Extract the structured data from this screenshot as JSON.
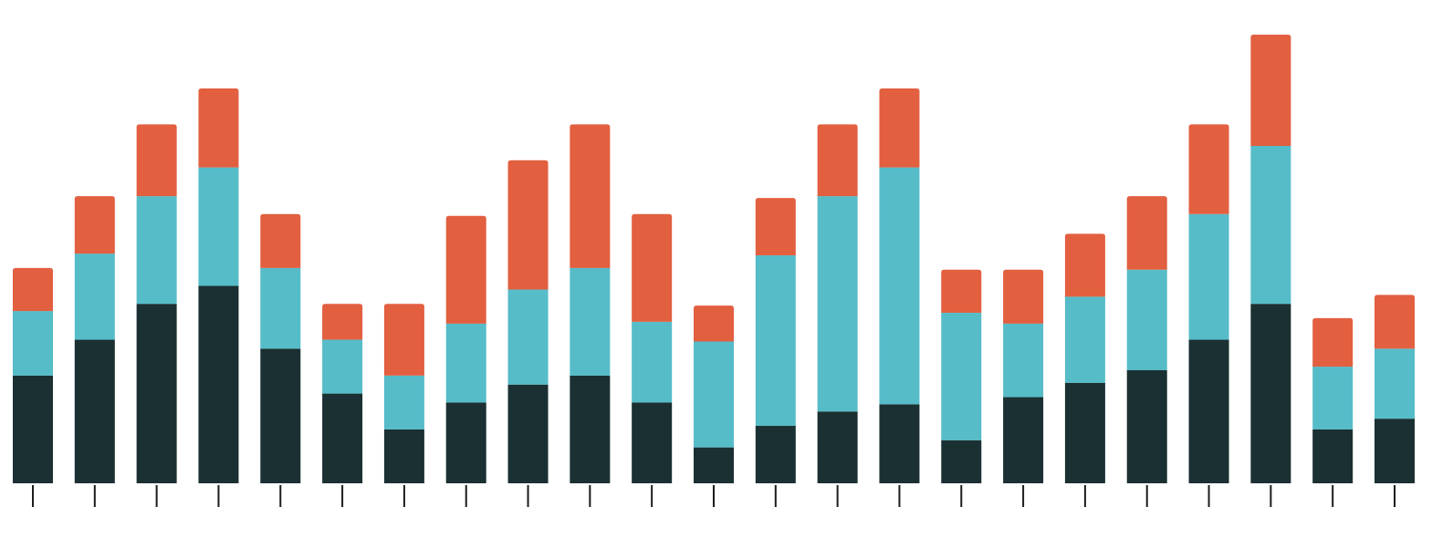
{
  "chart_data": {
    "type": "bar",
    "stacked": true,
    "title": "",
    "xlabel": "",
    "ylabel": "",
    "categories": [
      "",
      "",
      "",
      "",
      "",
      "",
      "",
      "",
      "",
      "",
      "",
      "",
      "",
      "",
      "",
      "",
      "",
      "",
      "",
      "",
      "",
      "",
      ""
    ],
    "ylim": [
      0,
      125
    ],
    "grid": false,
    "legend": "none",
    "series": [
      {
        "color": "#1b3032",
        "values": [
          30,
          40,
          50,
          55,
          37.5,
          25,
          15,
          22.5,
          27.5,
          30,
          22.5,
          10,
          16,
          20,
          22,
          12,
          24,
          28,
          31.5,
          40,
          50,
          15,
          18
        ]
      },
      {
        "color": "#56bcc8",
        "values": [
          18,
          24,
          30,
          33,
          22.5,
          15,
          15,
          22,
          26.5,
          30,
          22.5,
          29.5,
          47.5,
          60,
          66,
          35.5,
          20.5,
          24,
          28,
          35,
          44,
          17.5,
          19.5
        ]
      },
      {
        "color": "#e25f40",
        "values": [
          12,
          16,
          20,
          22,
          15,
          10,
          20,
          30,
          36,
          40,
          30,
          10,
          16,
          20,
          22,
          12,
          15,
          17.5,
          20.5,
          25,
          31,
          13.5,
          15
        ]
      }
    ]
  }
}
